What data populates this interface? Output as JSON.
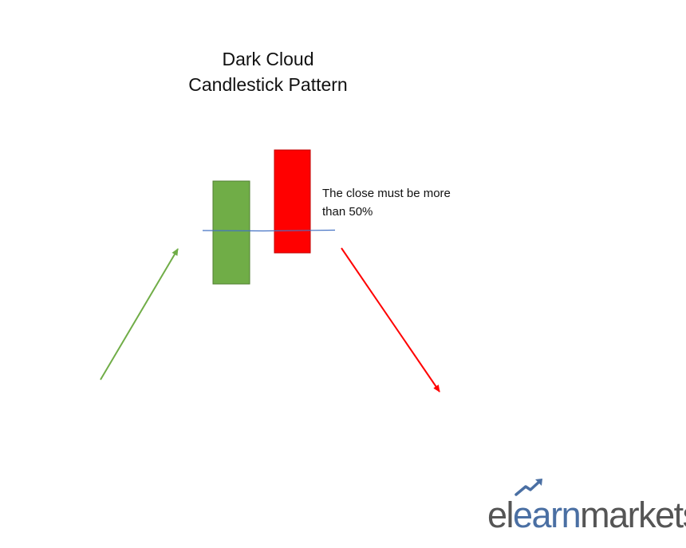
{
  "title": {
    "line1": "Dark Cloud",
    "line2": "Candlestick Pattern"
  },
  "annotation": {
    "line1": "The close must be more",
    "line2": "than 50%"
  },
  "colors": {
    "bullish_candle": "#70ad47",
    "bearish_candle": "#ff0000",
    "uptrend_arrow": "#70ad47",
    "downtrend_arrow": "#ff0000",
    "midpoint_line": "#4472c4",
    "logo_gray": "#555555",
    "logo_blue": "#4a6fa3"
  },
  "logo": {
    "part1": "el",
    "part2": "earn",
    "part3": "markets",
    "icon": "rising-chart-arrow-icon"
  }
}
